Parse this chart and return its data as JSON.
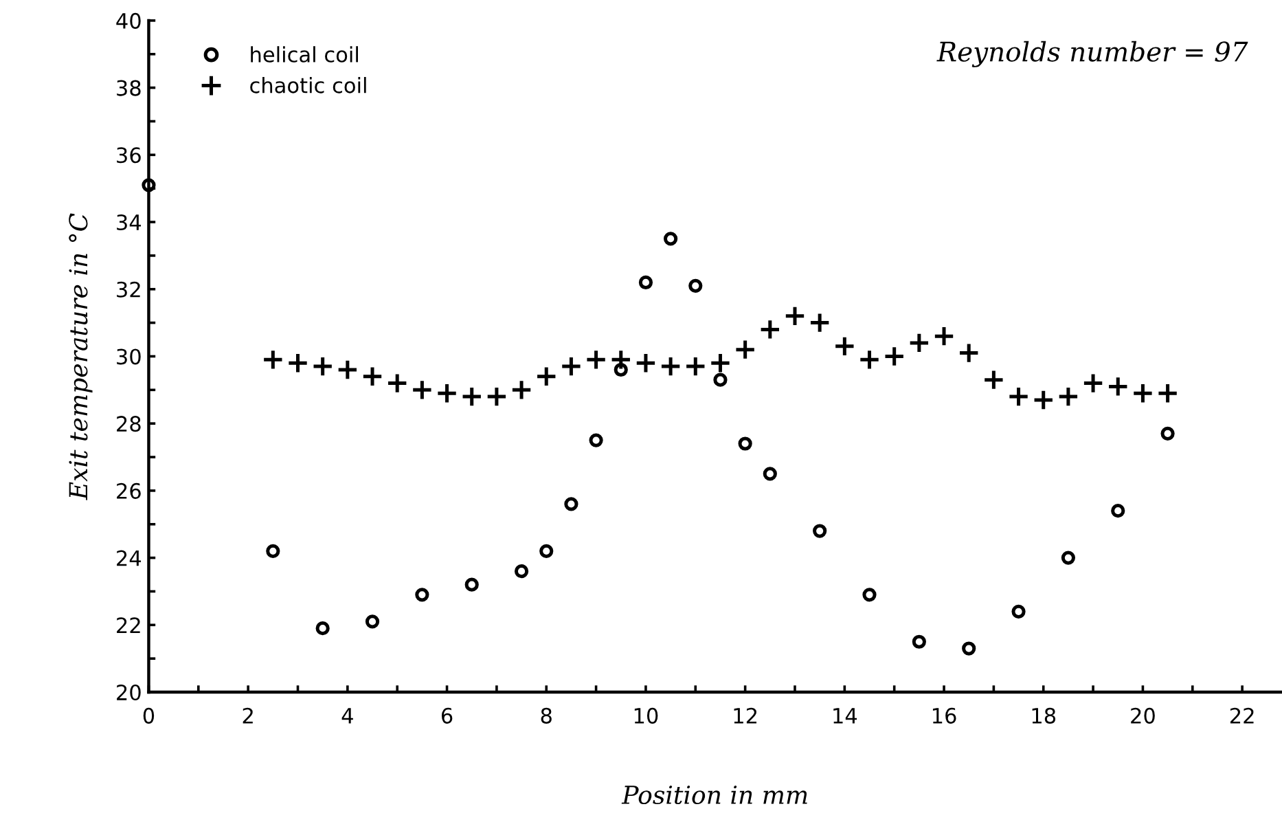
{
  "chart_data": {
    "type": "scatter",
    "xlabel": "Position in mm",
    "ylabel": "Exit temperature in °C",
    "annotations": [
      "Reynolds number = 97"
    ],
    "xlim": [
      0,
      22.8
    ],
    "ylim": [
      20,
      40
    ],
    "xticks": [
      0,
      {
        "value": 1,
        "label": null
      },
      2,
      {
        "value": 3,
        "label": null
      },
      4,
      {
        "value": 5,
        "label": null
      },
      6,
      {
        "value": 7,
        "label": null
      },
      8,
      {
        "value": 9,
        "label": null
      },
      10,
      {
        "value": 11,
        "label": null
      },
      12,
      {
        "value": 13,
        "label": null
      },
      14,
      {
        "value": 15,
        "label": null
      },
      16,
      {
        "value": 17,
        "label": null
      },
      18,
      {
        "value": 19,
        "label": null
      },
      20,
      {
        "value": 21,
        "label": null
      },
      22
    ],
    "yticks": [
      20,
      {
        "value": 21,
        "label": null
      },
      22,
      {
        "value": 23,
        "label": null
      },
      24,
      {
        "value": 25,
        "label": null
      },
      26,
      {
        "value": 27,
        "label": null
      },
      28,
      {
        "value": 29,
        "label": null
      },
      30,
      {
        "value": 31,
        "label": null
      },
      32,
      {
        "value": 33,
        "label": null
      },
      34,
      {
        "value": 35,
        "label": null
      },
      36,
      {
        "value": 37,
        "label": null
      },
      38,
      {
        "value": 39,
        "label": null
      },
      40
    ],
    "grid": false,
    "legend": "top left",
    "series": [
      {
        "name": "helical coil",
        "color": "#000000",
        "marker": "circle",
        "x": [
          0,
          2.5,
          3.5,
          4.5,
          5.5,
          6.5,
          7.5,
          8,
          8.5,
          9,
          9.5,
          10,
          10.5,
          11,
          11.5,
          12,
          12.5,
          13.5,
          14.5,
          15.5,
          16.5,
          17.5,
          18.5,
          19.5,
          20.5
        ],
        "values": [
          35.1,
          24.2,
          21.9,
          22.1,
          22.9,
          23.2,
          23.6,
          24.2,
          25.6,
          27.5,
          29.6,
          32.2,
          33.5,
          32.1,
          29.3,
          27.4,
          26.5,
          24.8,
          22.9,
          21.5,
          21.3,
          22.4,
          24.0,
          25.4,
          27.7
        ]
      },
      {
        "name": "chaotic coil",
        "color": "#000000",
        "marker": "cross",
        "x": [
          2.5,
          3,
          3.5,
          4,
          4.5,
          5,
          5.5,
          6,
          6.5,
          7,
          7.5,
          8,
          8.5,
          9,
          9.5,
          10,
          10.5,
          11,
          11.5,
          12,
          12.5,
          13,
          13.5,
          14,
          14.5,
          15,
          15.5,
          16,
          16.5,
          17,
          17.5,
          18,
          18.5,
          19,
          19.5,
          20,
          20.5
        ],
        "values": [
          29.9,
          29.8,
          29.7,
          29.6,
          29.4,
          29.2,
          29.0,
          28.9,
          28.8,
          28.8,
          29.0,
          29.4,
          29.7,
          29.9,
          29.9,
          29.8,
          29.7,
          29.7,
          29.8,
          30.2,
          30.8,
          31.2,
          31.0,
          30.3,
          29.9,
          30.0,
          30.4,
          30.6,
          30.1,
          29.3,
          28.8,
          28.7,
          28.8,
          29.2,
          29.1,
          28.9,
          28.9
        ]
      }
    ]
  }
}
